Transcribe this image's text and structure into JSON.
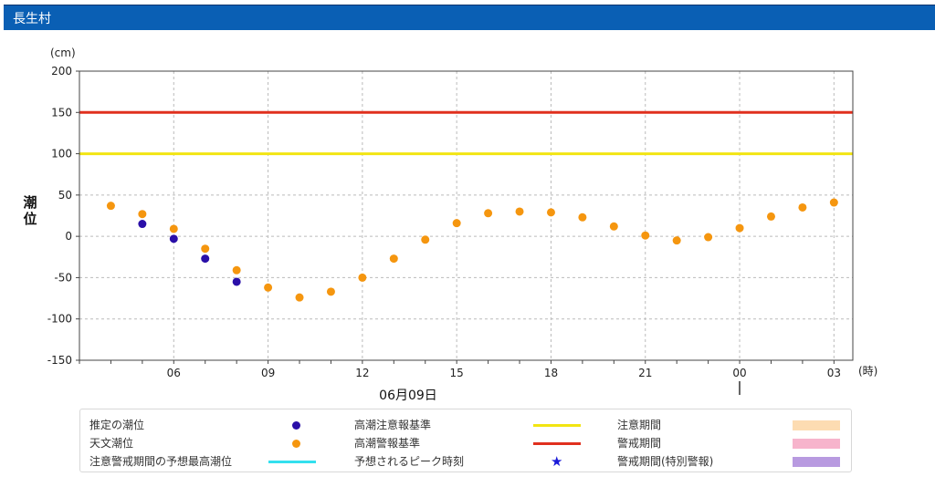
{
  "header": {
    "title": "長生村"
  },
  "chart_data": {
    "type": "scatter",
    "yunit": "(cm)",
    "ylabel": "潮位",
    "xunit": "(時)",
    "date_label": "06月09日",
    "ylim": [
      -150,
      200
    ],
    "yticks": [
      200,
      150,
      100,
      50,
      0,
      -50,
      -100,
      -150
    ],
    "xtick_labels": [
      "06",
      "09",
      "12",
      "15",
      "18",
      "21",
      "00",
      "03"
    ],
    "xtick_hours": [
      6,
      9,
      12,
      15,
      18,
      21,
      24,
      27
    ],
    "xlim": [
      3,
      27.6
    ],
    "thresholds": [
      {
        "name": "高潮注意報基準",
        "value": 100,
        "color": "#f2e512"
      },
      {
        "name": "高潮警報基準",
        "value": 150,
        "color": "#e0301e"
      }
    ],
    "series": [
      {
        "name": "推定の潮位",
        "color": "#2a0fa8",
        "x": [
          5,
          6,
          7,
          8
        ],
        "y": [
          15,
          -3,
          -27,
          -55
        ]
      },
      {
        "name": "天文潮位",
        "color": "#f5960f",
        "x": [
          4,
          5,
          6,
          7,
          8,
          9,
          10,
          11,
          12,
          13,
          14,
          15,
          16,
          17,
          18,
          19,
          20,
          21,
          22,
          23,
          24,
          25,
          26,
          27
        ],
        "y": [
          37,
          27,
          9,
          -15,
          -41,
          -62,
          -74,
          -67,
          -50,
          -27,
          -4,
          16,
          28,
          30,
          29,
          23,
          12,
          1,
          -5,
          -1,
          10,
          24,
          35,
          41
        ]
      }
    ]
  },
  "legend": {
    "items": [
      {
        "label": "推定の潮位",
        "symbol": "dot",
        "color": "#2a0fa8"
      },
      {
        "label": "高潮注意報基準",
        "symbol": "line",
        "color": "#f2e512"
      },
      {
        "label": "注意期間",
        "symbol": "box",
        "color": "#fddcb2"
      },
      {
        "label": "天文潮位",
        "symbol": "dot",
        "color": "#f5960f"
      },
      {
        "label": "高潮警報基準",
        "symbol": "line",
        "color": "#e0301e"
      },
      {
        "label": "警戒期間",
        "symbol": "box",
        "color": "#f7b4cc"
      },
      {
        "label": "注意警戒期間の予想最高潮位",
        "symbol": "line",
        "color": "#33e0ee"
      },
      {
        "label": "予想されるピーク時刻",
        "symbol": "star",
        "color": "#1a1ad8",
        "glyph": "★"
      },
      {
        "label": "警戒期間(特別警報)",
        "symbol": "box",
        "color": "#b89ae0"
      }
    ]
  }
}
